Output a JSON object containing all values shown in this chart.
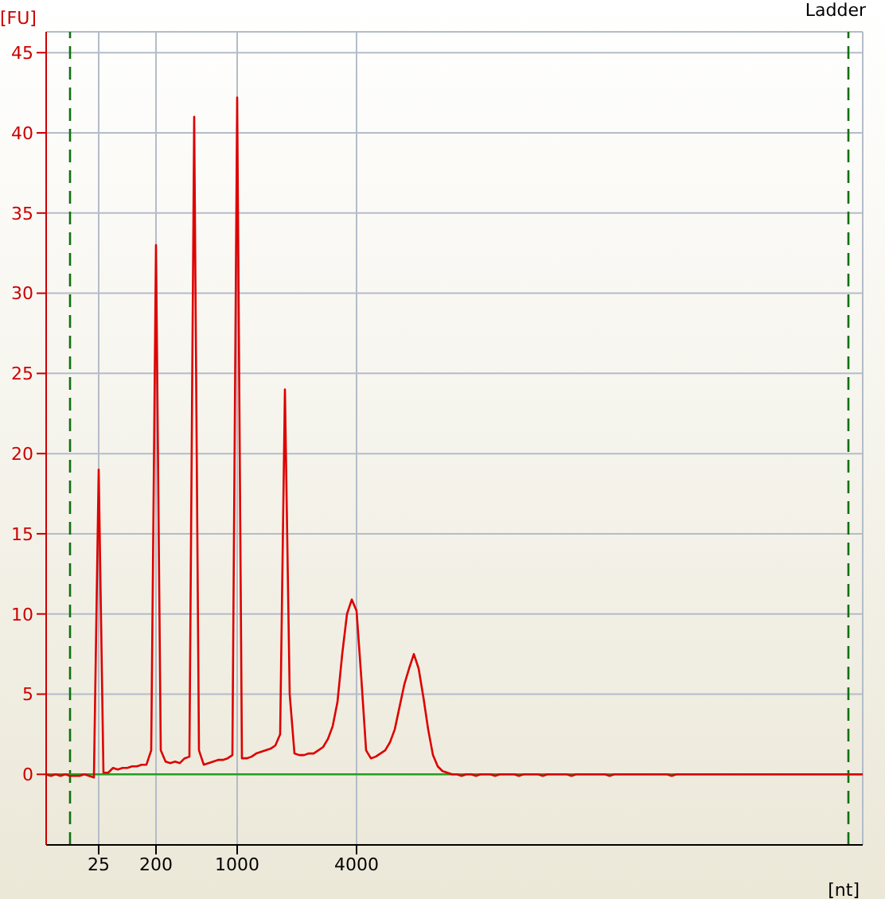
{
  "chart_data": {
    "type": "line",
    "title": "Ladder",
    "xlabel": "[nt]",
    "ylabel": "[FU]",
    "categories": [
      null,
      null,
      null,
      null,
      null,
      null,
      null,
      null,
      null,
      null,
      null,
      "25",
      null,
      null,
      null,
      null,
      null,
      null,
      null,
      null,
      null,
      null,
      null,
      "200",
      null,
      null,
      null,
      null,
      null,
      null,
      null,
      null,
      null,
      null,
      null,
      null,
      null,
      null,
      null,
      null,
      "1000",
      null,
      null,
      null,
      null,
      null,
      null,
      null,
      null,
      null,
      null,
      null,
      null,
      null,
      null,
      null,
      null,
      null,
      null,
      null,
      null,
      null,
      null,
      null,
      null,
      "4000",
      null,
      null,
      null,
      null,
      null,
      null,
      null,
      null,
      null,
      null,
      null,
      null,
      null,
      null,
      null,
      null,
      null,
      null,
      null,
      null,
      null,
      null,
      null,
      null,
      null,
      null,
      null,
      null,
      null,
      null,
      null,
      null,
      null,
      null,
      null,
      null,
      null,
      null,
      null,
      null,
      null,
      null,
      null,
      null,
      null,
      null,
      null,
      null,
      null,
      null,
      null,
      null,
      null,
      null,
      null,
      null,
      null,
      null,
      null,
      null,
      null,
      null,
      null,
      null,
      null,
      null,
      null,
      null,
      null,
      null,
      null,
      null,
      null,
      null,
      null,
      null,
      null,
      null,
      null,
      null,
      null,
      null,
      null,
      null,
      null,
      null,
      null,
      null,
      null,
      null,
      null,
      null,
      null,
      null,
      null,
      null,
      null,
      null,
      null,
      null,
      null,
      null,
      null,
      null,
      null,
      null
    ],
    "series": [
      {
        "color": "#dd0000",
        "values": [
          0,
          -0.1,
          0,
          -0.1,
          0,
          -0.1,
          -0.1,
          -0.1,
          0,
          -0.1,
          -0.2,
          19,
          0.1,
          0.1,
          0.4,
          0.3,
          0.4,
          0.4,
          0.5,
          0.5,
          0.6,
          0.6,
          1.5,
          33,
          1.5,
          0.8,
          0.7,
          0.8,
          0.7,
          1.0,
          1.1,
          41,
          1.5,
          0.6,
          0.7,
          0.8,
          0.9,
          0.9,
          1.0,
          1.2,
          42.2,
          1.0,
          1.0,
          1.1,
          1.3,
          1.4,
          1.5,
          1.6,
          1.8,
          2.5,
          24,
          5,
          1.3,
          1.2,
          1.2,
          1.3,
          1.3,
          1.5,
          1.7,
          2.2,
          3.0,
          4.5,
          7.5,
          10,
          10.9,
          10.2,
          6,
          1.5,
          1.0,
          1.1,
          1.3,
          1.5,
          2.0,
          2.8,
          4.2,
          5.6,
          6.6,
          7.5,
          6.6,
          4.8,
          2.8,
          1.2,
          0.5,
          0.2,
          0.1,
          0,
          0,
          -0.1,
          0,
          0,
          -0.1,
          0,
          0,
          0,
          -0.1,
          0,
          0,
          0,
          0,
          -0.1,
          0,
          0,
          0,
          0,
          -0.1,
          0,
          0,
          0,
          0,
          0,
          -0.1,
          0,
          0,
          0,
          0,
          0,
          0,
          0,
          -0.1,
          0,
          0,
          0,
          0,
          0,
          0,
          0,
          0,
          0,
          0,
          0,
          0,
          -0.1,
          0,
          0,
          0,
          0,
          0,
          0,
          0,
          0,
          0,
          0,
          0,
          0,
          0,
          0,
          0,
          0,
          0,
          0,
          0,
          0,
          0,
          0,
          0,
          0,
          0,
          0,
          0,
          0,
          0,
          0,
          0,
          0,
          0,
          0,
          0,
          0,
          0,
          0,
          0,
          0
        ]
      }
    ],
    "ylim": [
      -4.4,
      46.3
    ],
    "yticks": [
      0,
      5,
      10,
      15,
      20,
      25,
      30,
      35,
      40,
      45
    ],
    "grid": true,
    "marker": "none",
    "line_style": "solid",
    "ref_lines": [
      {
        "axis": "y",
        "value": 0,
        "color": "#20a020",
        "line_style": "solid"
      }
    ]
  }
}
